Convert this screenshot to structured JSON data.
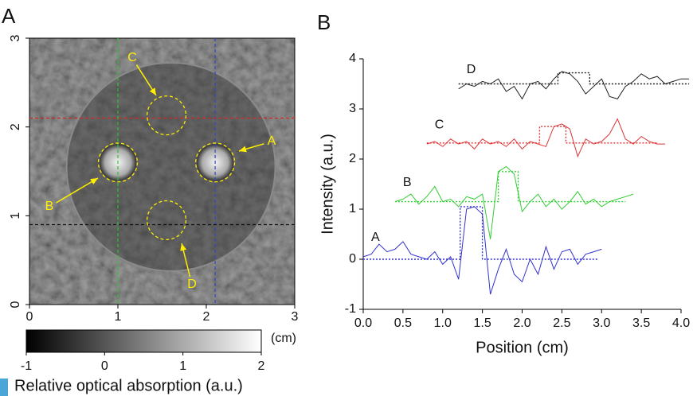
{
  "chart_data": [
    {
      "type": "image",
      "panel_label": "A",
      "xlabel": "(cm)",
      "xlim": [
        0,
        3
      ],
      "ylim": [
        0,
        3
      ],
      "xticks": [
        0,
        1,
        2,
        3
      ],
      "yticks": [
        0,
        1,
        2,
        3
      ],
      "vlines": [
        {
          "value": 1,
          "color": "#22cc22"
        },
        {
          "value": 2.1,
          "color": "#3344cc"
        }
      ],
      "hlines": [
        {
          "value": 2.1,
          "color": "#dd2222"
        },
        {
          "value": 0.9,
          "color": "#111111"
        }
      ],
      "annotations": [
        {
          "label": "A",
          "x": 2.1,
          "y": 1.6,
          "r": 0.22
        },
        {
          "label": "B",
          "x": 1.0,
          "y": 1.6,
          "r": 0.22
        },
        {
          "label": "C",
          "x": 1.55,
          "y": 2.13,
          "r": 0.22
        },
        {
          "label": "D",
          "x": 1.55,
          "y": 0.95,
          "r": 0.22
        }
      ],
      "annotation_color": "#ffee00",
      "colorbar": {
        "label": "Relative optical absorption (a.u.)",
        "lim": [
          -1,
          2
        ],
        "ticks": [
          -1,
          0,
          1,
          2
        ]
      }
    },
    {
      "type": "line",
      "panel_label": "B",
      "xlabel": "Position (cm)",
      "ylabel": "Intensity (a.u.)",
      "xlim": [
        0,
        4
      ],
      "ylim": [
        -1,
        4
      ],
      "xticks": [
        {
          "value": 0,
          "label": "0.0"
        },
        {
          "value": 0.5,
          "label": "0.5"
        },
        {
          "value": 1,
          "label": "1.0"
        },
        {
          "value": 1.5,
          "label": "1.5"
        },
        {
          "value": 2,
          "label": "2.0"
        },
        {
          "value": 2.5,
          "label": "2.5"
        },
        {
          "value": 3,
          "label": "3.0"
        },
        {
          "value": 3.5,
          "label": "3.5"
        },
        {
          "value": 4,
          "label": "4.0"
        }
      ],
      "yticks": [
        -1,
        0,
        1,
        2,
        3,
        4
      ],
      "series": [
        {
          "name": "A",
          "color": "#3333cc",
          "x": [
            0,
            0.1,
            0.2,
            0.3,
            0.4,
            0.5,
            0.6,
            0.7,
            0.8,
            0.9,
            1.0,
            1.1,
            1.2,
            1.3,
            1.4,
            1.5,
            1.6,
            1.7,
            1.8,
            1.9,
            2.0,
            2.1,
            2.2,
            2.3,
            2.4,
            2.5,
            2.6,
            2.7,
            2.8,
            2.9,
            3.0
          ],
          "values": [
            0.05,
            0.1,
            0.3,
            0.15,
            0.2,
            0.35,
            0.1,
            0.05,
            0.0,
            0.15,
            -0.1,
            0.05,
            -0.4,
            1.0,
            1.05,
            0.9,
            -0.7,
            -0.2,
            0.2,
            -0.3,
            -0.45,
            0.0,
            -0.3,
            0.25,
            -0.2,
            0.15,
            0.2,
            -0.1,
            0.1,
            0.15,
            0.2
          ],
          "fit": {
            "x": [
              0,
              1.22,
              1.22,
              1.5,
              1.5,
              2.95
            ],
            "values": [
              0,
              0,
              1.05,
              1.05,
              0,
              0
            ]
          }
        },
        {
          "name": "B",
          "color": "#33cc33",
          "x": [
            0.4,
            0.5,
            0.6,
            0.7,
            0.8,
            0.9,
            1.0,
            1.1,
            1.2,
            1.3,
            1.4,
            1.5,
            1.6,
            1.7,
            1.8,
            1.9,
            2.0,
            2.1,
            2.2,
            2.3,
            2.4,
            2.5,
            2.6,
            2.7,
            2.8,
            2.9,
            3.0,
            3.1,
            3.2,
            3.3,
            3.4
          ],
          "values": [
            1.15,
            1.2,
            1.3,
            1.1,
            1.25,
            1.45,
            1.15,
            1.2,
            1.05,
            1.25,
            1.2,
            1.3,
            0.4,
            1.75,
            1.85,
            1.7,
            0.95,
            1.15,
            1.3,
            1.05,
            1.2,
            1.0,
            1.15,
            1.35,
            1.1,
            1.2,
            1.05,
            1.15,
            1.2,
            1.25,
            1.3
          ],
          "fit": {
            "x": [
              0.4,
              1.7,
              1.7,
              1.95,
              1.95,
              3.3
            ],
            "values": [
              1.15,
              1.15,
              1.75,
              1.75,
              1.15,
              1.15
            ]
          }
        },
        {
          "name": "C",
          "color": "#dd3333",
          "x": [
            0.8,
            0.9,
            1.0,
            1.1,
            1.2,
            1.3,
            1.4,
            1.5,
            1.6,
            1.7,
            1.8,
            1.9,
            2.0,
            2.1,
            2.2,
            2.3,
            2.4,
            2.5,
            2.6,
            2.7,
            2.8,
            2.9,
            3.0,
            3.1,
            3.2,
            3.3,
            3.4,
            3.5,
            3.6,
            3.7,
            3.8
          ],
          "values": [
            2.3,
            2.35,
            2.25,
            2.4,
            2.3,
            2.35,
            2.2,
            2.4,
            2.3,
            2.35,
            2.25,
            2.4,
            2.2,
            2.35,
            2.3,
            2.25,
            2.65,
            2.7,
            2.6,
            2.05,
            2.4,
            2.3,
            2.35,
            2.5,
            2.8,
            2.4,
            2.3,
            2.45,
            2.35,
            2.3,
            2.3
          ],
          "fit": {
            "x": [
              0.8,
              2.22,
              2.22,
              2.55,
              2.55,
              3.7
            ],
            "values": [
              2.32,
              2.32,
              2.65,
              2.65,
              2.32,
              2.32
            ]
          }
        },
        {
          "name": "D",
          "color": "#222222",
          "x": [
            1.2,
            1.3,
            1.4,
            1.5,
            1.6,
            1.7,
            1.8,
            1.9,
            2.0,
            2.1,
            2.2,
            2.3,
            2.4,
            2.5,
            2.6,
            2.7,
            2.8,
            2.9,
            3.0,
            3.1,
            3.2,
            3.3,
            3.4,
            3.5,
            3.6,
            3.7,
            3.8,
            3.9,
            4.0,
            4.1
          ],
          "values": [
            3.4,
            3.5,
            3.45,
            3.55,
            3.5,
            3.6,
            3.35,
            3.45,
            3.2,
            3.5,
            3.55,
            3.4,
            3.6,
            3.75,
            3.7,
            3.55,
            3.3,
            3.45,
            3.6,
            3.25,
            3.2,
            3.45,
            3.55,
            3.7,
            3.6,
            3.65,
            3.5,
            3.55,
            3.6,
            3.6
          ],
          "fit": {
            "x": [
              1.2,
              2.45,
              2.45,
              2.85,
              2.85,
              4.1
            ],
            "values": [
              3.5,
              3.5,
              3.72,
              3.72,
              3.5,
              3.5
            ]
          }
        }
      ]
    }
  ]
}
